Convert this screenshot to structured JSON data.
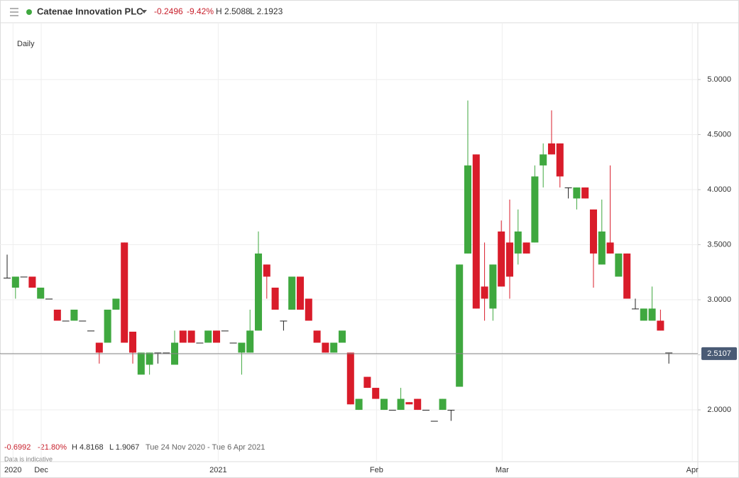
{
  "header": {
    "title": "Catenae Innovation PLC",
    "change": "-0.2496",
    "change_pct": "-9.42%",
    "high": "H 2.5088",
    "low": "L 2.1923"
  },
  "interval": "Daily",
  "summary": {
    "change": "-0.6992",
    "change_pct": "-21.80%",
    "high": "H 4.8168",
    "low": "L 1.9067",
    "range": "Tue 24 Nov 2020 - Tue 6 Apr 2021",
    "note": "Data is indicative"
  },
  "chart_data": {
    "type": "candlestick",
    "up_color": "#3fa83f",
    "down_color": "#d91c2a",
    "open": [
      3.2,
      3.11,
      3.21,
      3.21,
      3.01,
      3.01,
      2.91,
      2.81,
      2.81,
      2.81,
      2.72,
      2.61,
      2.61,
      2.91,
      3.52,
      2.71,
      2.32,
      2.41,
      2.52,
      2.52,
      2.41,
      2.72,
      2.72,
      2.61,
      2.61,
      2.72,
      2.72,
      2.61,
      2.52,
      2.52,
      2.72,
      3.32,
      3.11,
      2.81,
      2.91,
      3.21,
      3.01,
      2.72,
      2.61,
      2.52,
      2.61,
      2.52,
      2.0,
      2.3,
      2.2,
      2.0,
      2.0,
      2.0,
      2.07,
      2.1,
      2.0,
      1.9,
      2.0,
      2.0,
      2.21,
      3.42,
      4.32,
      3.12,
      2.92,
      3.62,
      3.52,
      3.42,
      3.52,
      3.52,
      4.22,
      4.42,
      4.42,
      4.02,
      3.92,
      4.02,
      3.82,
      3.32,
      3.52,
      3.21,
      3.42,
      2.92,
      2.81,
      2.81,
      2.81,
      2.52
    ],
    "high": [
      3.41,
      3.21,
      3.21,
      3.21,
      3.11,
      3.01,
      2.91,
      2.81,
      2.91,
      2.81,
      2.72,
      2.61,
      2.91,
      3.01,
      3.52,
      2.71,
      2.52,
      2.52,
      2.52,
      2.52,
      2.72,
      2.72,
      2.72,
      2.61,
      2.72,
      2.72,
      2.72,
      2.61,
      2.61,
      2.91,
      3.62,
      3.32,
      3.11,
      2.81,
      3.21,
      3.21,
      3.01,
      2.72,
      2.61,
      2.61,
      2.72,
      2.52,
      2.1,
      2.3,
      2.2,
      2.1,
      2.0,
      2.2,
      2.07,
      2.1,
      2.0,
      1.9,
      2.1,
      2.0,
      3.32,
      4.81,
      4.32,
      3.52,
      3.32,
      3.72,
      3.91,
      3.82,
      3.52,
      4.22,
      4.42,
      4.72,
      4.42,
      4.02,
      4.02,
      4.02,
      3.82,
      3.91,
      4.22,
      3.42,
      3.42,
      3.01,
      2.92,
      3.12,
      2.91,
      2.52
    ],
    "low": [
      3.2,
      3.01,
      3.21,
      3.11,
      3.01,
      3.01,
      2.81,
      2.81,
      2.81,
      2.81,
      2.72,
      2.42,
      2.61,
      2.91,
      2.61,
      2.42,
      2.32,
      2.32,
      2.42,
      2.52,
      2.41,
      2.61,
      2.61,
      2.61,
      2.61,
      2.61,
      2.72,
      2.61,
      2.32,
      2.52,
      2.72,
      3.01,
      2.91,
      2.72,
      2.91,
      2.91,
      2.81,
      2.61,
      2.52,
      2.52,
      2.61,
      2.05,
      2.0,
      2.2,
      2.1,
      2.0,
      2.0,
      2.0,
      2.05,
      2.0,
      2.0,
      1.9,
      2.0,
      1.9,
      2.21,
      3.42,
      2.92,
      2.81,
      2.81,
      3.12,
      3.01,
      3.32,
      3.42,
      3.52,
      4.02,
      4.32,
      4.02,
      3.92,
      3.82,
      3.92,
      3.11,
      3.32,
      3.42,
      3.21,
      3.01,
      2.92,
      2.81,
      2.81,
      2.72,
      2.42
    ],
    "close": [
      3.2,
      3.21,
      3.21,
      3.11,
      3.11,
      3.01,
      2.81,
      2.81,
      2.91,
      2.81,
      2.72,
      2.52,
      2.91,
      3.01,
      2.61,
      2.52,
      2.52,
      2.52,
      2.52,
      2.52,
      2.61,
      2.61,
      2.61,
      2.61,
      2.72,
      2.61,
      2.72,
      2.61,
      2.61,
      2.72,
      3.42,
      3.21,
      2.91,
      2.81,
      3.21,
      2.91,
      2.81,
      2.61,
      2.52,
      2.61,
      2.72,
      2.05,
      2.1,
      2.2,
      2.1,
      2.1,
      2.0,
      2.1,
      2.05,
      2.0,
      2.0,
      1.9,
      2.1,
      2.0,
      3.32,
      4.22,
      2.92,
      3.01,
      3.32,
      3.12,
      3.21,
      3.62,
      3.42,
      4.12,
      4.32,
      4.32,
      4.12,
      4.02,
      4.02,
      3.92,
      3.42,
      3.62,
      3.42,
      3.42,
      3.01,
      2.92,
      2.92,
      2.92,
      2.72,
      2.52
    ],
    "xlim": [
      -0.85,
      82.46
    ],
    "xticks": [
      {
        "value": 0.7,
        "label": "2020"
      },
      {
        "value": 4.07,
        "label": "Dec"
      },
      {
        "value": 25.2,
        "label": "2021"
      },
      {
        "value": 44.1,
        "label": "Feb"
      },
      {
        "value": 59.1,
        "label": "Mar"
      },
      {
        "value": 81.8,
        "label": "Apr"
      }
    ],
    "ylim": [
      1.723,
      5.529
    ],
    "yticks": [
      {
        "value": 2,
        "label": "2.0000"
      },
      {
        "value": 2.5,
        "label": "2.5000"
      },
      {
        "value": 3,
        "label": "3.0000"
      },
      {
        "value": 3.5,
        "label": "3.5000"
      },
      {
        "value": 4,
        "label": "4.0000"
      },
      {
        "value": 4.5,
        "label": "4.5000"
      },
      {
        "value": 5,
        "label": "5.0000"
      }
    ],
    "last_price": {
      "value": 2.5107,
      "label": "2.5107"
    }
  }
}
